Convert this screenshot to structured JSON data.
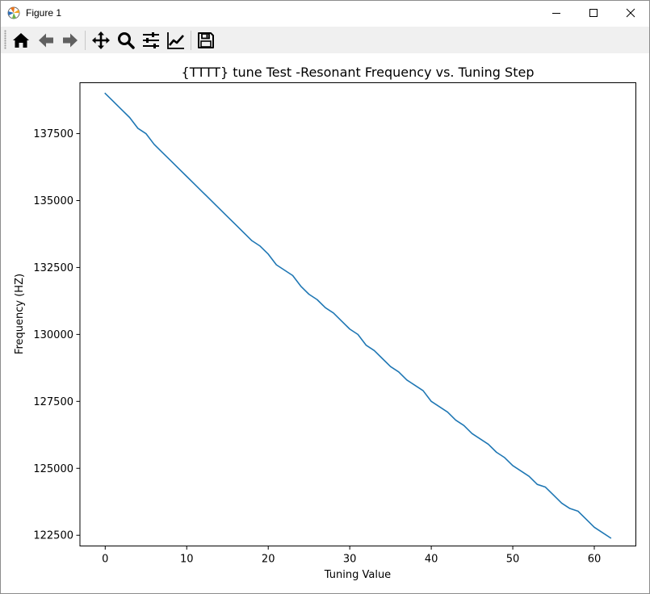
{
  "window": {
    "title": "Figure 1"
  },
  "window_controls": [
    "minimize",
    "maximize",
    "close"
  ],
  "toolbar": {
    "buttons": [
      "home-icon",
      "back-icon",
      "forward-icon",
      "pan-icon",
      "zoom-icon",
      "configure-subplots-icon",
      "edit-axis-icon",
      "save-icon"
    ]
  },
  "colors": {
    "line": "#1f77b4",
    "toolbar_bg": "#f0f0f0"
  },
  "chart_data": {
    "type": "line",
    "title": "{TTTT} tune Test -Resonant Frequency vs. Tuning Step",
    "xlabel": "Tuning Value",
    "ylabel": "Frequency (HZ)",
    "xlim": [
      -3.1,
      65.1
    ],
    "ylim": [
      122100,
      139400
    ],
    "xticks": [
      0,
      10,
      20,
      30,
      40,
      50,
      60
    ],
    "yticks": [
      122500,
      125000,
      127500,
      130000,
      132500,
      135000,
      137500
    ],
    "grid": false,
    "series": [
      {
        "x": [
          0,
          1,
          2,
          3,
          4,
          5,
          6,
          7,
          8,
          9,
          10,
          11,
          12,
          13,
          14,
          15,
          16,
          17,
          18,
          19,
          20,
          21,
          22,
          23,
          24,
          25,
          26,
          27,
          28,
          29,
          30,
          31,
          32,
          33,
          34,
          35,
          36,
          37,
          38,
          39,
          40,
          41,
          42,
          43,
          44,
          45,
          46,
          47,
          48,
          49,
          50,
          51,
          52,
          53,
          54,
          55,
          56,
          57,
          58,
          59,
          60,
          61,
          62
        ],
        "y": [
          139000,
          138700,
          138400,
          138100,
          137700,
          137500,
          137100,
          136800,
          136500,
          136200,
          135900,
          135600,
          135300,
          135000,
          134700,
          134400,
          134100,
          133800,
          133500,
          133300,
          133000,
          132600,
          132400,
          132200,
          131800,
          131500,
          131300,
          131000,
          130800,
          130500,
          130200,
          130000,
          129600,
          129400,
          129100,
          128800,
          128600,
          128300,
          128100,
          127900,
          127500,
          127300,
          127100,
          126800,
          126600,
          126300,
          126100,
          125900,
          125600,
          125400,
          125100,
          124900,
          124700,
          124400,
          124300,
          124000,
          123700,
          123500,
          123400,
          123100,
          122800,
          122600,
          122400
        ]
      }
    ]
  }
}
